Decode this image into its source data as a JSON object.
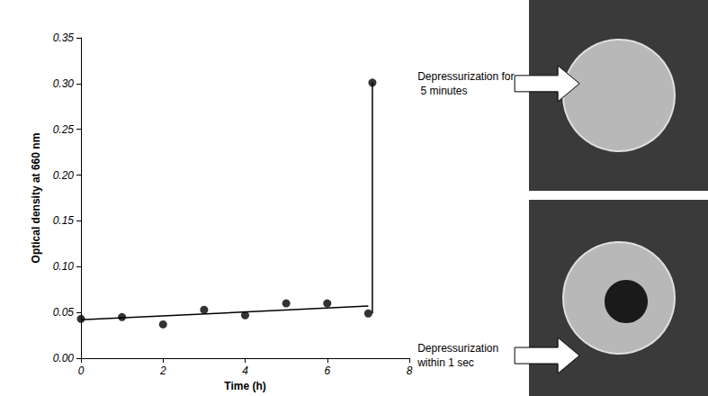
{
  "chart_data": {
    "type": "scatter",
    "x_label": "Time (h)",
    "y_label": "Optical density at 660 nm",
    "xlim": [
      0,
      8
    ],
    "xticks": [
      0,
      2,
      4,
      6,
      8
    ],
    "ylim": [
      0,
      0.35
    ],
    "yticks": [
      {
        "value": 0,
        "label": "0.00"
      },
      {
        "value": 0.05,
        "label": "0.05"
      },
      {
        "value": 0.1,
        "label": "0.10"
      },
      {
        "value": 0.15,
        "label": "0.15"
      },
      {
        "value": 0.2,
        "label": "0.20"
      },
      {
        "value": 0.25,
        "label": "0.25"
      },
      {
        "value": 0.3,
        "label": "0.30"
      },
      {
        "value": 0.35,
        "label": "0.35"
      }
    ],
    "grid": false,
    "series": [
      {
        "type": "scatter",
        "color": "#000000",
        "marker": "circle",
        "x": [
          0,
          1,
          2,
          3,
          4,
          5,
          6,
          7,
          7.1
        ],
        "values": [
          0.043,
          0.045,
          0.037,
          0.053,
          0.047,
          0.06,
          0.06,
          0.049,
          0.301
        ]
      },
      {
        "type": "line",
        "color": "#000000",
        "line_style": "solid",
        "x": [
          0,
          7
        ],
        "values": [
          0.042,
          0.057
        ]
      },
      {
        "type": "line",
        "color": "#000000",
        "line_style": "solid",
        "x": [
          7.1,
          7.1
        ],
        "values": [
          0.049,
          0.301
        ]
      }
    ],
    "annotations": [
      {
        "text": "Depressurization for 5 minutes",
        "x": 8.2,
        "y": 0.3
      },
      {
        "text": "Depressurization within 1 sec",
        "x": 8.2,
        "y": 0.003
      }
    ]
  }
}
